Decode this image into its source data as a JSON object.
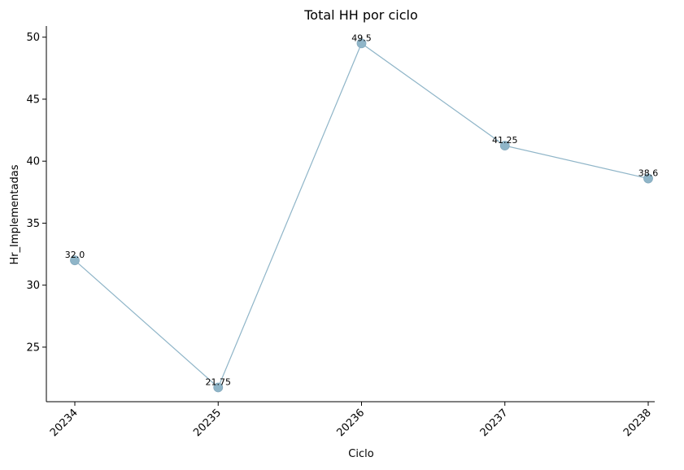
{
  "chart_data": {
    "type": "line",
    "title": "Total HH por ciclo",
    "xlabel": "Ciclo",
    "ylabel": "Hr_Implementadas",
    "categories": [
      "20234",
      "20235",
      "20236",
      "20237",
      "20238"
    ],
    "values": [
      32.0,
      21.75,
      49.5,
      41.25,
      38.6
    ],
    "data_labels": [
      "32.0",
      "21.75",
      "49.5",
      "41.25",
      "38.6"
    ],
    "yticks": [
      25,
      30,
      35,
      40,
      45,
      50
    ],
    "ylim": [
      20.6,
      50.9
    ],
    "grid": false,
    "color": "#8fb5c8"
  }
}
